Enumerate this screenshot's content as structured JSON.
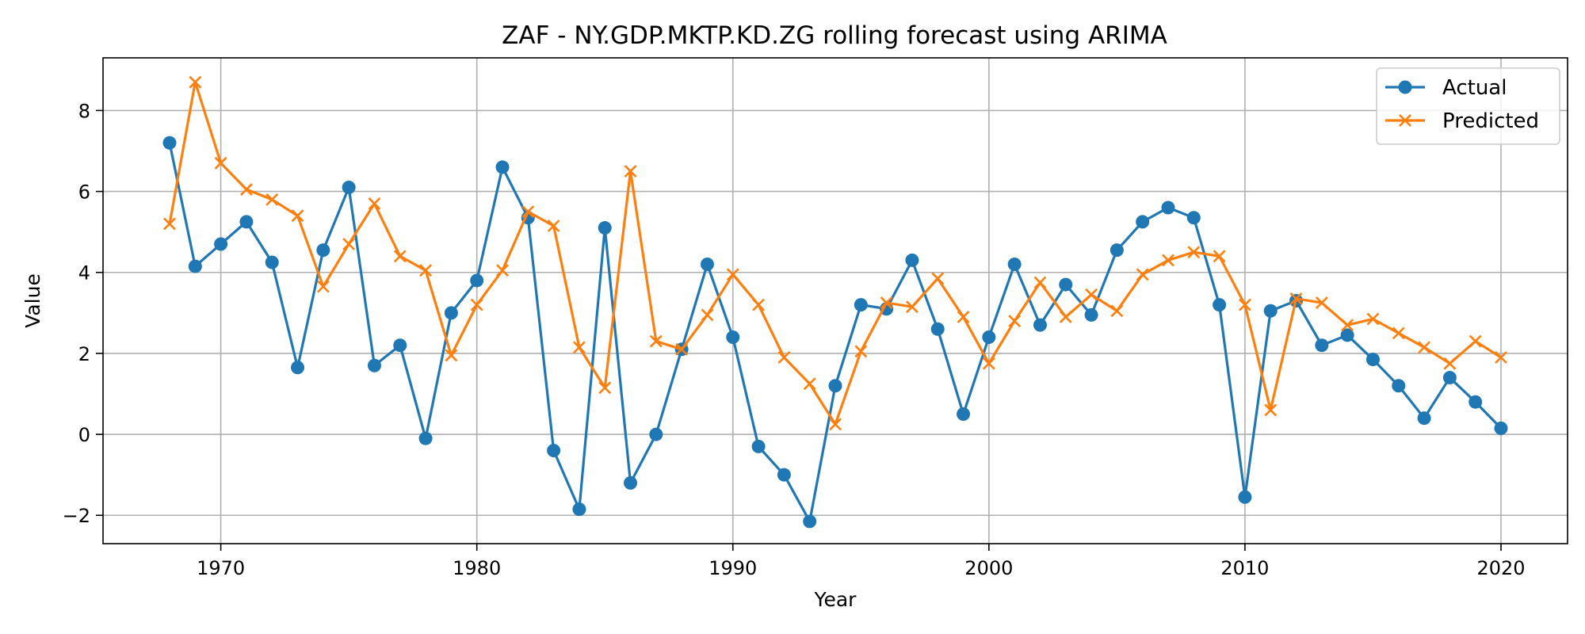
{
  "chart_data": {
    "type": "line",
    "title": "ZAF - NY.GDP.MKTP.KD.ZG rolling forecast using ARIMA",
    "xlabel": "Year",
    "ylabel": "Value",
    "xlim": [
      1965.4,
      2022.6
    ],
    "ylim": [
      -2.7,
      9.3
    ],
    "xticks": [
      1970,
      1980,
      1990,
      2000,
      2010,
      2020
    ],
    "yticks": [
      -2,
      0,
      2,
      4,
      6,
      8
    ],
    "ytick_labels": [
      "−2",
      "0",
      "2",
      "4",
      "6",
      "8"
    ],
    "grid": true,
    "legend_position": "top-right",
    "x": [
      1968,
      1969,
      1970,
      1971,
      1972,
      1973,
      1974,
      1975,
      1976,
      1977,
      1978,
      1979,
      1980,
      1981,
      1982,
      1983,
      1984,
      1985,
      1986,
      1987,
      1988,
      1989,
      1990,
      1991,
      1992,
      1993,
      1994,
      1995,
      1996,
      1997,
      1998,
      1999,
      2000,
      2001,
      2002,
      2003,
      2004,
      2005,
      2006,
      2007,
      2008,
      2009,
      2010,
      2011,
      2012,
      2013,
      2014,
      2015,
      2016,
      2017,
      2018,
      2019,
      2020
    ],
    "series": [
      {
        "name": "Actual",
        "color": "#1f77b4",
        "marker": "circle",
        "values": [
          7.2,
          4.15,
          4.7,
          5.25,
          4.25,
          1.65,
          4.55,
          6.1,
          1.7,
          2.2,
          -0.1,
          3.0,
          3.8,
          6.6,
          5.35,
          -0.4,
          -1.85,
          5.1,
          -1.2,
          0.0,
          2.1,
          4.2,
          2.4,
          -0.3,
          -1.0,
          -2.15,
          1.2,
          3.2,
          3.1,
          4.3,
          2.6,
          0.5,
          2.4,
          4.2,
          2.7,
          3.7,
          2.95,
          4.55,
          5.25,
          5.6,
          5.35,
          3.2,
          -1.55,
          3.05,
          3.3,
          2.2,
          2.45,
          1.85,
          1.2,
          0.4,
          1.4,
          0.8,
          0.15
        ]
      },
      {
        "name": "Predicted",
        "color": "#ff7f0e",
        "marker": "x",
        "values": [
          5.2,
          8.7,
          6.7,
          6.05,
          5.8,
          5.4,
          3.65,
          4.7,
          5.7,
          4.4,
          4.05,
          1.95,
          3.2,
          4.05,
          5.5,
          5.15,
          2.15,
          1.15,
          6.5,
          2.3,
          2.1,
          2.95,
          3.95,
          3.2,
          1.9,
          1.25,
          0.25,
          2.05,
          3.25,
          3.15,
          3.85,
          2.9,
          1.75,
          2.8,
          3.75,
          2.9,
          3.45,
          3.05,
          3.95,
          4.3,
          4.5,
          4.4,
          3.2,
          0.6,
          3.35,
          3.25,
          2.7,
          2.85,
          2.5,
          2.15,
          1.75,
          2.3,
          1.9
        ]
      }
    ]
  }
}
